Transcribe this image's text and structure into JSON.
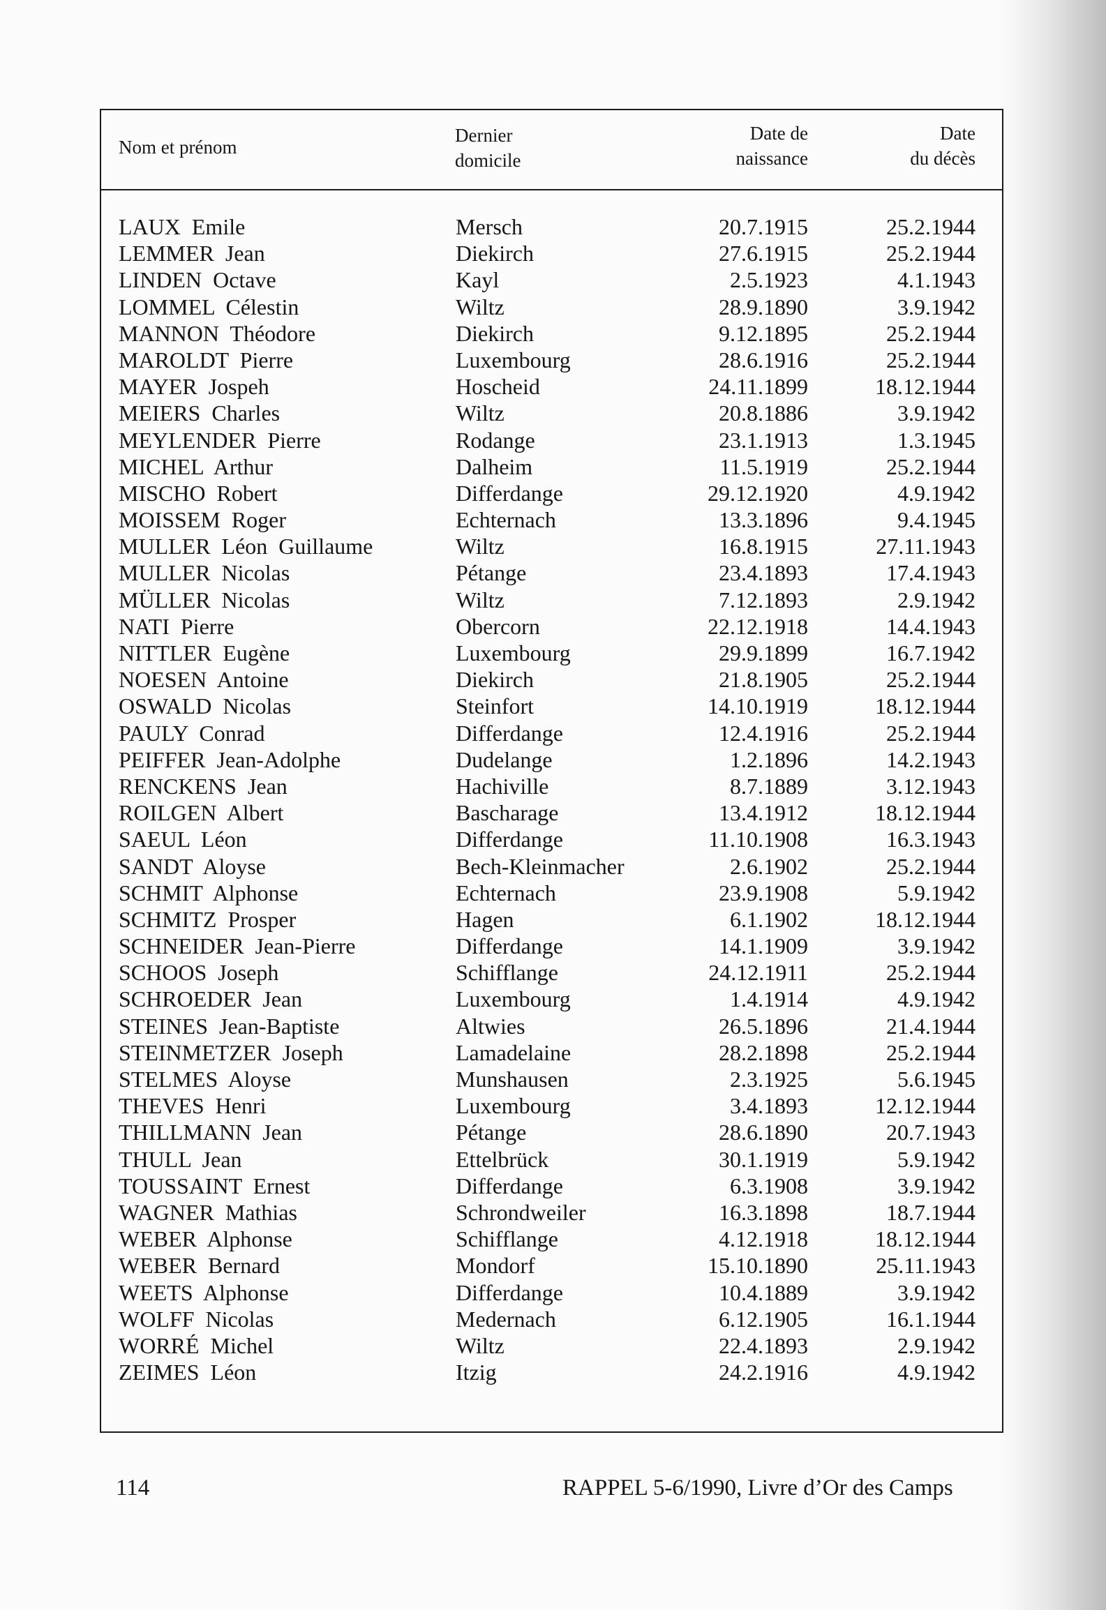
{
  "table": {
    "headers": {
      "name": "Nom et prénom",
      "domicile_l1": "Dernier",
      "domicile_l2": "domicile",
      "birth_l1": "Date de",
      "birth_l2": "naissance",
      "death_l1": "Date",
      "death_l2": "du décès"
    },
    "rows": [
      {
        "name": "LAUX  Emile",
        "domicile": "Mersch",
        "birth": "20.7.1915",
        "death": "25.2.1944"
      },
      {
        "name": "LEMMER  Jean",
        "domicile": "Diekirch",
        "birth": "27.6.1915",
        "death": "25.2.1944"
      },
      {
        "name": "LINDEN  Octave",
        "domicile": "Kayl",
        "birth": "2.5.1923",
        "death": "4.1.1943"
      },
      {
        "name": "LOMMEL  Célestin",
        "domicile": "Wiltz",
        "birth": "28.9.1890",
        "death": "3.9.1942"
      },
      {
        "name": "MANNON  Théodore",
        "domicile": "Diekirch",
        "birth": "9.12.1895",
        "death": "25.2.1944"
      },
      {
        "name": "MAROLDT  Pierre",
        "domicile": "Luxembourg",
        "birth": "28.6.1916",
        "death": "25.2.1944"
      },
      {
        "name": "MAYER  Jospeh",
        "domicile": "Hoscheid",
        "birth": "24.11.1899",
        "death": "18.12.1944"
      },
      {
        "name": "MEIERS  Charles",
        "domicile": "Wiltz",
        "birth": "20.8.1886",
        "death": "3.9.1942"
      },
      {
        "name": "MEYLENDER  Pierre",
        "domicile": "Rodange",
        "birth": "23.1.1913",
        "death": "1.3.1945"
      },
      {
        "name": "MICHEL  Arthur",
        "domicile": "Dalheim",
        "birth": "11.5.1919",
        "death": "25.2.1944"
      },
      {
        "name": "MISCHO  Robert",
        "domicile": "Differdange",
        "birth": "29.12.1920",
        "death": "4.9.1942"
      },
      {
        "name": "MOISSEM  Roger",
        "domicile": "Echternach",
        "birth": "13.3.1896",
        "death": "9.4.1945"
      },
      {
        "name": "MULLER  Léon  Guillaume",
        "domicile": "Wiltz",
        "birth": "16.8.1915",
        "death": "27.11.1943"
      },
      {
        "name": "MULLER  Nicolas",
        "domicile": "Pétange",
        "birth": "23.4.1893",
        "death": "17.4.1943"
      },
      {
        "name": "MÜLLER  Nicolas",
        "domicile": "Wiltz",
        "birth": "7.12.1893",
        "death": "2.9.1942"
      },
      {
        "name": "NATI  Pierre",
        "domicile": "Obercorn",
        "birth": "22.12.1918",
        "death": "14.4.1943"
      },
      {
        "name": "NITTLER  Eugène",
        "domicile": "Luxembourg",
        "birth": "29.9.1899",
        "death": "16.7.1942"
      },
      {
        "name": "NOESEN  Antoine",
        "domicile": "Diekirch",
        "birth": "21.8.1905",
        "death": "25.2.1944"
      },
      {
        "name": "OSWALD  Nicolas",
        "domicile": "Steinfort",
        "birth": "14.10.1919",
        "death": "18.12.1944"
      },
      {
        "name": "PAULY  Conrad",
        "domicile": "Differdange",
        "birth": "12.4.1916",
        "death": "25.2.1944"
      },
      {
        "name": "PEIFFER  Jean-Adolphe",
        "domicile": "Dudelange",
        "birth": "1.2.1896",
        "death": "14.2.1943"
      },
      {
        "name": "RENCKENS  Jean",
        "domicile": "Hachiville",
        "birth": "8.7.1889",
        "death": "3.12.1943"
      },
      {
        "name": "ROILGEN  Albert",
        "domicile": "Bascharage",
        "birth": "13.4.1912",
        "death": "18.12.1944"
      },
      {
        "name": "SAEUL  Léon",
        "domicile": "Differdange",
        "birth": "11.10.1908",
        "death": "16.3.1943"
      },
      {
        "name": "SANDT  Aloyse",
        "domicile": "Bech-Kleinmacher",
        "birth": "2.6.1902",
        "death": "25.2.1944"
      },
      {
        "name": "SCHMIT  Alphonse",
        "domicile": "Echternach",
        "birth": "23.9.1908",
        "death": "5.9.1942"
      },
      {
        "name": "SCHMITZ  Prosper",
        "domicile": "Hagen",
        "birth": "6.1.1902",
        "death": "18.12.1944"
      },
      {
        "name": "SCHNEIDER  Jean-Pierre",
        "domicile": "Differdange",
        "birth": "14.1.1909",
        "death": "3.9.1942"
      },
      {
        "name": "SCHOOS  Joseph",
        "domicile": "Schifflange",
        "birth": "24.12.1911",
        "death": "25.2.1944"
      },
      {
        "name": "SCHROEDER  Jean",
        "domicile": "Luxembourg",
        "birth": "1.4.1914",
        "death": "4.9.1942"
      },
      {
        "name": "STEINES  Jean-Baptiste",
        "domicile": "Altwies",
        "birth": "26.5.1896",
        "death": "21.4.1944"
      },
      {
        "name": "STEINMETZER  Joseph",
        "domicile": "Lamadelaine",
        "birth": "28.2.1898",
        "death": "25.2.1944"
      },
      {
        "name": "STELMES  Aloyse",
        "domicile": "Munshausen",
        "birth": "2.3.1925",
        "death": "5.6.1945"
      },
      {
        "name": "THEVES  Henri",
        "domicile": "Luxembourg",
        "birth": "3.4.1893",
        "death": "12.12.1944"
      },
      {
        "name": "THILLMANN  Jean",
        "domicile": "Pétange",
        "birth": "28.6.1890",
        "death": "20.7.1943"
      },
      {
        "name": "THULL  Jean",
        "domicile": "Ettelbrück",
        "birth": "30.1.1919",
        "death": "5.9.1942"
      },
      {
        "name": "TOUSSAINT  Ernest",
        "domicile": "Differdange",
        "birth": "6.3.1908",
        "death": "3.9.1942"
      },
      {
        "name": "WAGNER  Mathias",
        "domicile": "Schrondweiler",
        "birth": "16.3.1898",
        "death": "18.7.1944"
      },
      {
        "name": "WEBER  Alphonse",
        "domicile": "Schifflange",
        "birth": "4.12.1918",
        "death": "18.12.1944"
      },
      {
        "name": "WEBER  Bernard",
        "domicile": "Mondorf",
        "birth": "15.10.1890",
        "death": "25.11.1943"
      },
      {
        "name": "WEETS  Alphonse",
        "domicile": "Differdange",
        "birth": "10.4.1889",
        "death": "3.9.1942"
      },
      {
        "name": "WOLFF  Nicolas",
        "domicile": "Medernach",
        "birth": "6.12.1905",
        "death": "16.1.1944"
      },
      {
        "name": "WORRÉ  Michel",
        "domicile": "Wiltz",
        "birth": "22.4.1893",
        "death": "2.9.1942"
      },
      {
        "name": "ZEIMES  Léon",
        "domicile": "Itzig",
        "birth": "24.2.1916",
        "death": "4.9.1942"
      }
    ]
  },
  "footer": {
    "page_number": "114",
    "source": "RAPPEL 5-6/1990, Livre d’Or des Camps"
  }
}
